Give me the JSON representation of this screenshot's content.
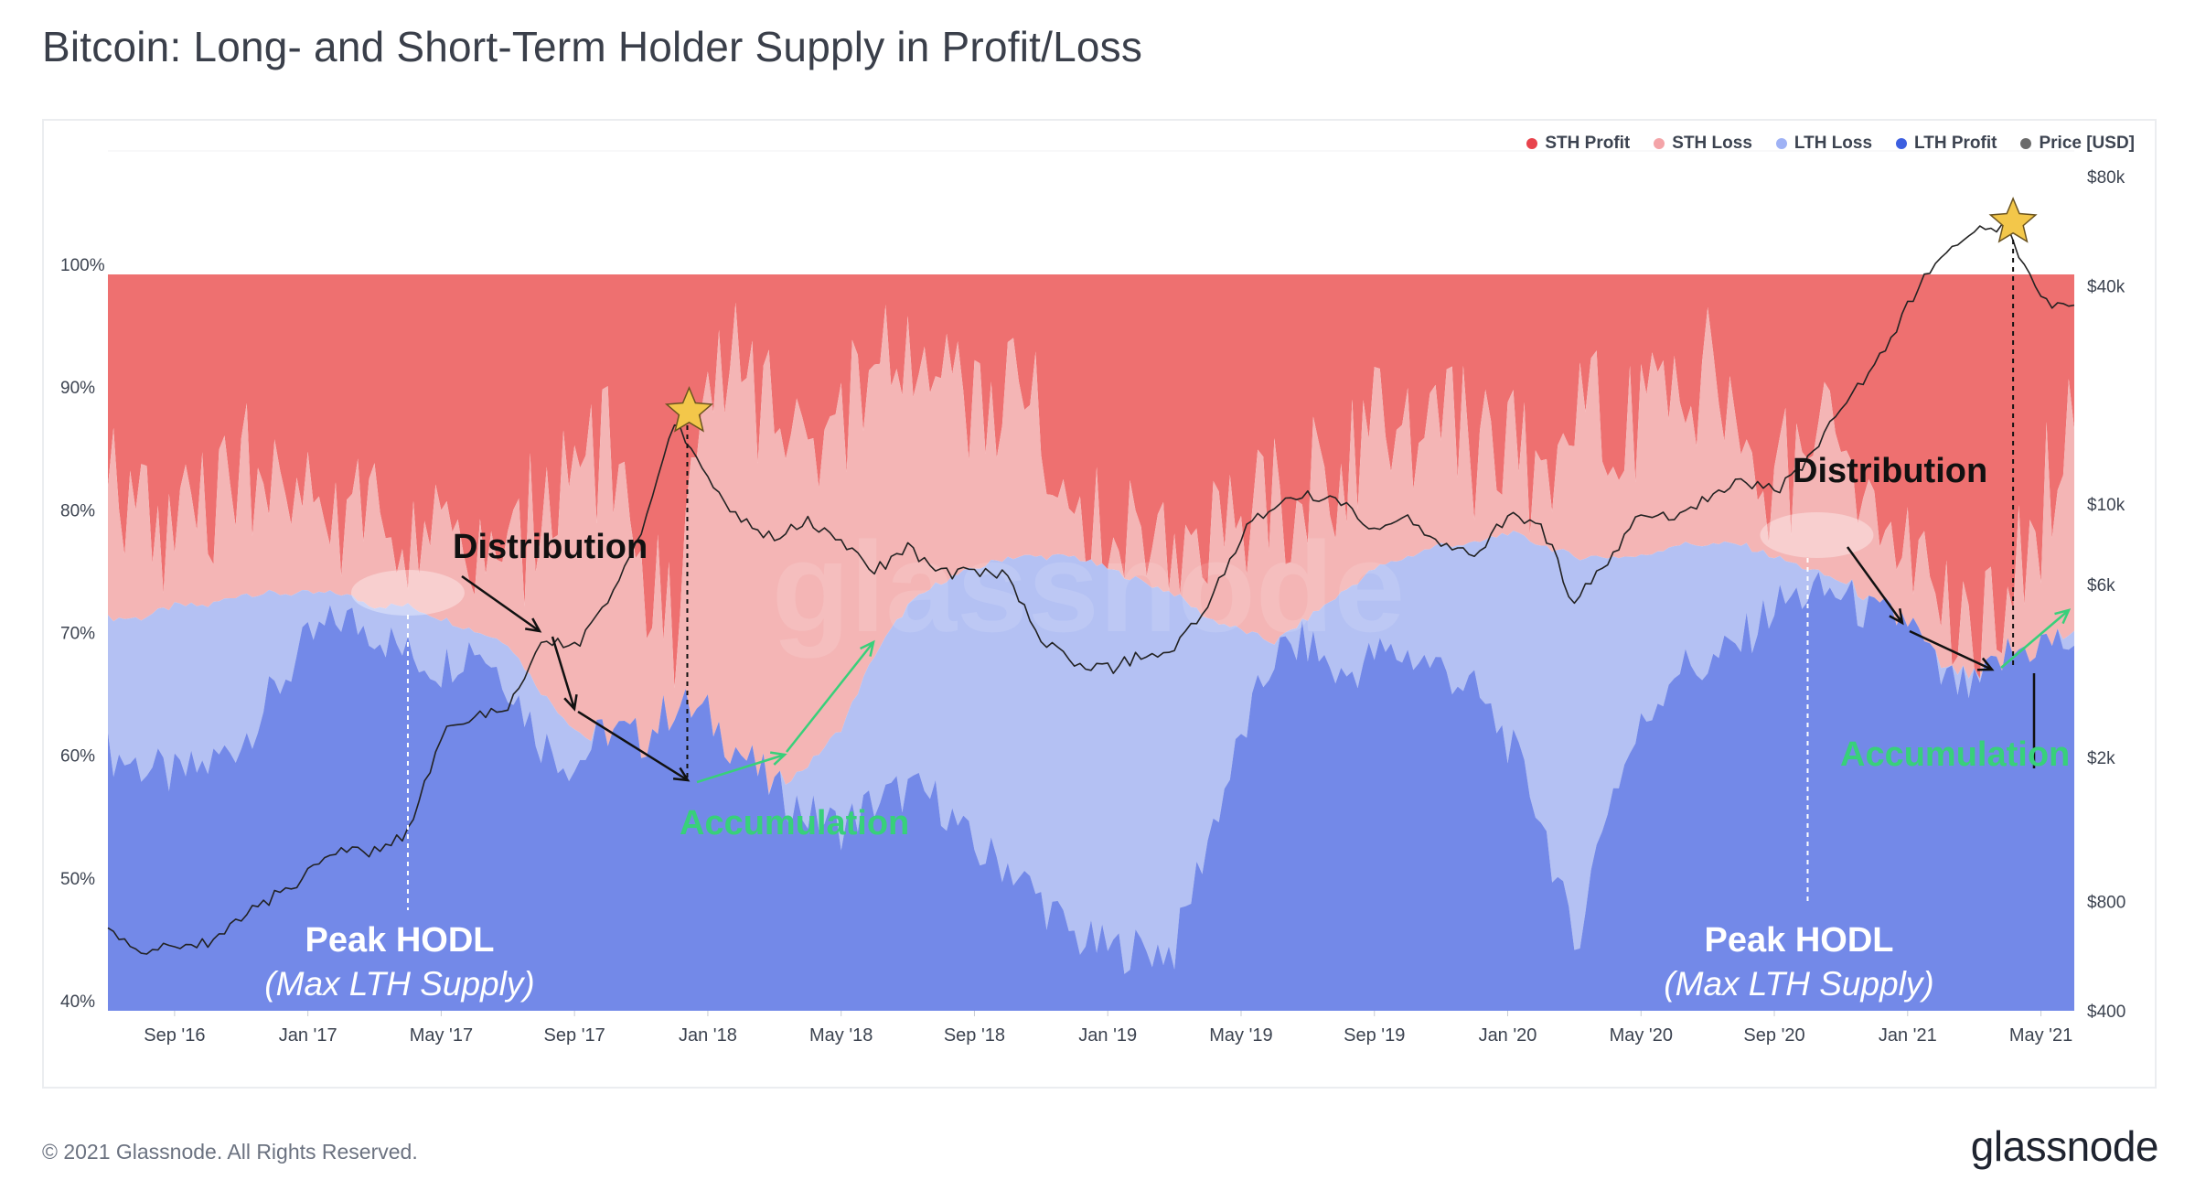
{
  "header": {
    "title": "Bitcoin: Long- and Short-Term Holder Supply in Profit/Loss"
  },
  "footer": {
    "copyright": "© 2021 Glassnode. All Rights Reserved.",
    "brand": "glassnode"
  },
  "watermark": "glassnode",
  "colors": {
    "sth_profit": "#ee7070",
    "sth_loss": "#f4b5b5",
    "lth_loss": "#b4c1f3",
    "lth_profit": "#7389e8",
    "price": "#222222",
    "legend_sth_profit": "#e8434c",
    "legend_sth_loss": "#f4a4a8",
    "legend_lth_loss": "#9fb2f5",
    "legend_lth_profit": "#3d5fe0",
    "legend_price": "#6b6b6b",
    "accumulation_text": "#38d07a",
    "distribution_text": "#111111",
    "peak_text": "#ffffff"
  },
  "chart_data": {
    "type": "area",
    "stacking": "percent",
    "x_ticks": [
      "Sep '16",
      "Jan '17",
      "May '17",
      "Sep '17",
      "Jan '18",
      "May '18",
      "Sep '18",
      "Jan '19",
      "May '19",
      "Sep '19",
      "Jan '20",
      "May '20",
      "Sep '20",
      "Jan '21",
      "May '21"
    ],
    "x_range": [
      "2016-07",
      "2021-06"
    ],
    "y_left_ticks": [
      "100%",
      "90%",
      "80%",
      "70%",
      "60%",
      "50%",
      "40%"
    ],
    "y_left_range": [
      40,
      100
    ],
    "y_right_ticks": [
      "$80k",
      "$40k",
      "$10k",
      "$6k",
      "$2k",
      "$800",
      "$400"
    ],
    "y_right_scale": "log",
    "y_right_range": [
      400,
      80000
    ],
    "legend_position": "top-right",
    "series_names": [
      "STH Profit",
      "STH Loss",
      "LTH Loss",
      "LTH Profit",
      "Price [USD]"
    ],
    "months": [
      "2016-07",
      "2016-08",
      "2016-09",
      "2016-10",
      "2016-11",
      "2016-12",
      "2017-01",
      "2017-02",
      "2017-03",
      "2017-04",
      "2017-05",
      "2017-06",
      "2017-07",
      "2017-08",
      "2017-09",
      "2017-10",
      "2017-11",
      "2017-12",
      "2018-01",
      "2018-02",
      "2018-03",
      "2018-04",
      "2018-05",
      "2018-06",
      "2018-07",
      "2018-08",
      "2018-09",
      "2018-10",
      "2018-11",
      "2018-12",
      "2019-01",
      "2019-02",
      "2019-03",
      "2019-04",
      "2019-05",
      "2019-06",
      "2019-07",
      "2019-08",
      "2019-09",
      "2019-10",
      "2019-11",
      "2019-12",
      "2020-01",
      "2020-02",
      "2020-03",
      "2020-04",
      "2020-05",
      "2020-06",
      "2020-07",
      "2020-08",
      "2020-09",
      "2020-10",
      "2020-11",
      "2020-12",
      "2021-01",
      "2021-02",
      "2021-03",
      "2021-04",
      "2021-05",
      "2021-06"
    ],
    "lth_profit_pct": [
      61,
      60,
      59,
      60,
      62,
      66,
      70,
      72,
      71,
      69,
      68,
      70,
      67,
      62,
      60,
      63,
      62,
      65,
      64,
      61,
      58,
      56,
      55,
      57,
      58,
      57,
      53,
      52,
      49,
      46,
      45,
      45,
      45,
      54,
      62,
      69,
      70,
      67,
      69,
      69,
      68,
      66,
      62,
      56,
      45,
      57,
      63,
      68,
      68,
      70,
      73,
      74,
      74,
      72,
      72,
      67,
      66,
      69,
      70,
      70
    ],
    "lth_total_pct": [
      72,
      72,
      73,
      73,
      74,
      74,
      74,
      74,
      73,
      73,
      72,
      71,
      70,
      66,
      63,
      61,
      60,
      58,
      57,
      57,
      58,
      60,
      63,
      69,
      73,
      75,
      76,
      77,
      77,
      77,
      76,
      75,
      74,
      72,
      71,
      70,
      72,
      74,
      76,
      77,
      78,
      78,
      79,
      78,
      77,
      77,
      77,
      78,
      78,
      78,
      77,
      76,
      75,
      73,
      69,
      68,
      67,
      67,
      69,
      71
    ],
    "sth_loss_top_pct": [
      82,
      81,
      79,
      80,
      84,
      83,
      80,
      81,
      80,
      80,
      78,
      76,
      75,
      82,
      86,
      85,
      74,
      72,
      95,
      92,
      89,
      89,
      87,
      92,
      93,
      91,
      89,
      92,
      88,
      82,
      78,
      77,
      78,
      80,
      79,
      81,
      84,
      84,
      87,
      88,
      90,
      85,
      86,
      84,
      91,
      88,
      88,
      90,
      92,
      86,
      82,
      87,
      84,
      82,
      77,
      72,
      71,
      73,
      80,
      92
    ],
    "price_usd": [
      660,
      580,
      600,
      620,
      720,
      830,
      950,
      1100,
      1100,
      1250,
      2300,
      2600,
      2700,
      4200,
      4000,
      5500,
      8000,
      17000,
      11500,
      9000,
      8000,
      9000,
      7800,
      6500,
      7600,
      6400,
      6600,
      6300,
      4200,
      3700,
      3500,
      3800,
      4000,
      5200,
      8200,
      10000,
      10500,
      10000,
      8400,
      9000,
      7600,
      7200,
      9300,
      8800,
      5300,
      7000,
      9400,
      9300,
      10500,
      11800,
      10800,
      13200,
      18000,
      24000,
      35000,
      49000,
      57000,
      58000,
      36000,
      35000
    ]
  },
  "annotations": {
    "distribution_left": "Distribution",
    "distribution_right": "Distribution",
    "accumulation_left": "Accumulation",
    "accumulation_right": "Accumulation",
    "peak_left_line1": "Peak HODL",
    "peak_left_line2": "(Max LTH Supply)",
    "peak_right_line1": "Peak HODL",
    "peak_right_line2": "(Max LTH Supply)"
  }
}
